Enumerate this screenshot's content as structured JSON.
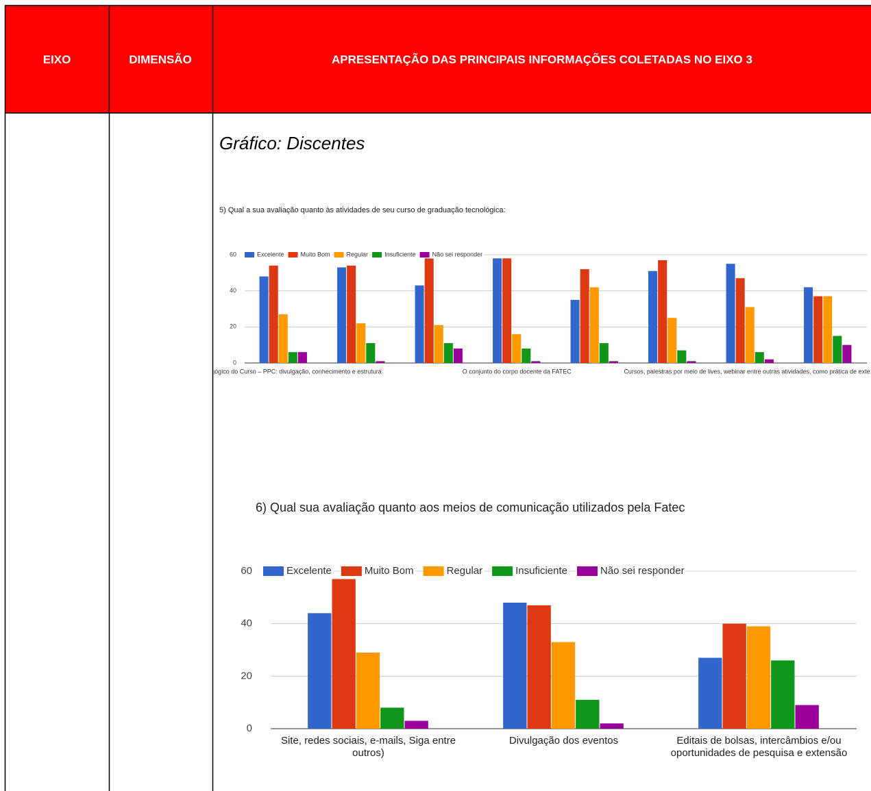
{
  "table": {
    "headers": [
      "EIXO",
      "DIMENSÃO",
      "APRESENTAÇÃO DAS PRINCIPAIS INFORMAÇÕES COLETADAS NO EIXO 3"
    ]
  },
  "heading": "Gráfico: Discentes",
  "chart_data": [
    {
      "type": "bar",
      "title": "5) Qual a sua avaliação quanto às atividades de seu curso de graduação tecnológica:",
      "categories": [
        "gógico do Curso – PPC: divulgação, conhecimento e estrutura.",
        null,
        null,
        "O conjunto do corpo docente da FATEC",
        null,
        null,
        "Cursos, palestras por meio de lives, webinar entre outras atividades, como prática de extens",
        null
      ],
      "series": [
        {
          "name": "Excelente",
          "color": "#3366cc",
          "values": [
            48,
            53,
            43,
            58,
            35,
            51,
            55,
            42
          ]
        },
        {
          "name": "Muito Bom",
          "color": "#dc3912",
          "values": [
            54,
            54,
            58,
            58,
            52,
            57,
            47,
            37
          ]
        },
        {
          "name": "Regular",
          "color": "#ff9900",
          "values": [
            27,
            22,
            21,
            16,
            42,
            25,
            31,
            37
          ]
        },
        {
          "name": "Insuficiente",
          "color": "#109618",
          "values": [
            6,
            11,
            11,
            8,
            11,
            7,
            6,
            15
          ]
        },
        {
          "name": "Não sei responder",
          "color": "#990099",
          "values": [
            6,
            1,
            8,
            1,
            1,
            1,
            2,
            10
          ]
        }
      ],
      "ylim": [
        0,
        60
      ],
      "yticks": [
        0,
        20,
        40,
        60
      ],
      "grid": true,
      "legend": "top"
    },
    {
      "type": "bar",
      "title": "6) Qual sua avaliação quanto aos meios de comunicação utilizados pela Fatec",
      "categories": [
        "Site, redes sociais, e-mails, Siga entre outros)",
        "Divulgação dos eventos",
        "Editais de bolsas, intercâmbios e/ou oportunidades de pesquisa e extensão"
      ],
      "series": [
        {
          "name": "Excelente",
          "color": "#3366cc",
          "values": [
            44,
            48,
            27
          ]
        },
        {
          "name": "Muito Bom",
          "color": "#dc3912",
          "values": [
            57,
            47,
            40
          ]
        },
        {
          "name": "Regular",
          "color": "#ff9900",
          "values": [
            29,
            33,
            39
          ]
        },
        {
          "name": "Insuficiente",
          "color": "#109618",
          "values": [
            8,
            11,
            26
          ]
        },
        {
          "name": "Não sei responder",
          "color": "#990099",
          "values": [
            3,
            2,
            9
          ]
        }
      ],
      "ylim": [
        0,
        60
      ],
      "yticks": [
        0,
        20,
        40,
        60
      ],
      "grid": true,
      "legend": "top"
    }
  ]
}
